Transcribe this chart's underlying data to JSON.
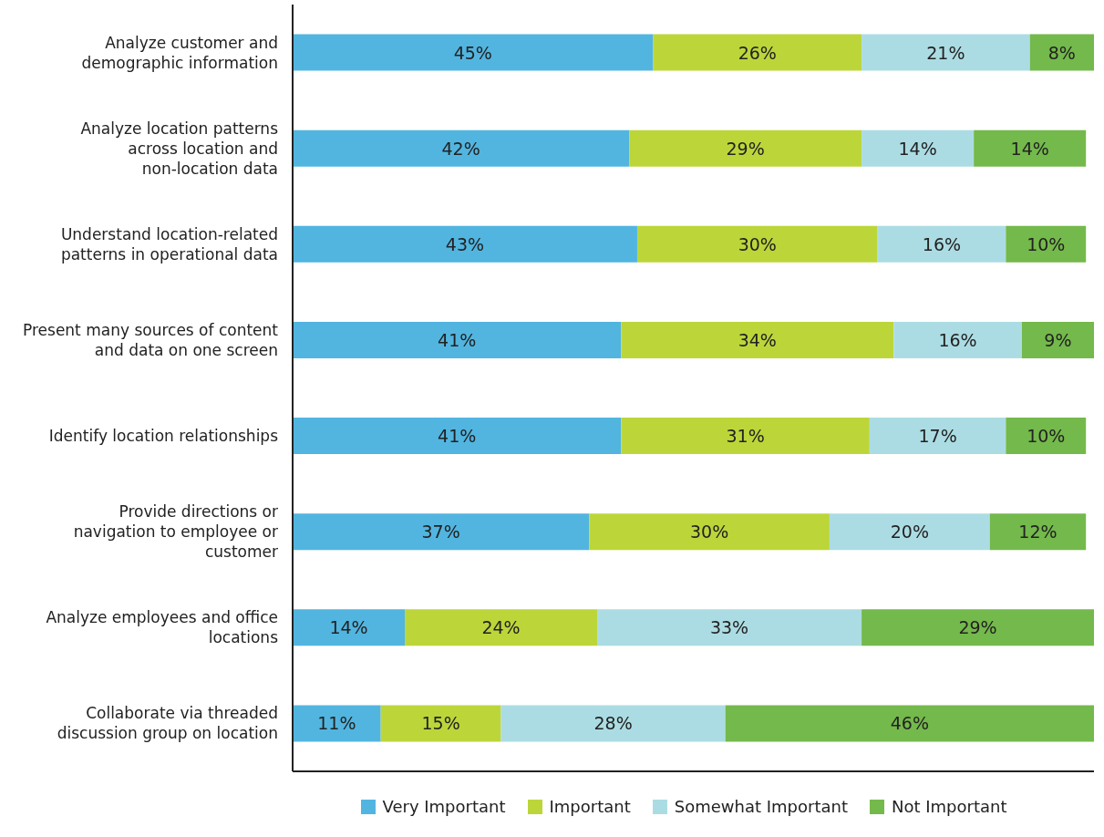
{
  "chart_data": {
    "type": "bar",
    "orientation": "horizontal",
    "stacked": true,
    "categories": [
      "Analyze customer and demographic information",
      "Analyze location patterns across location and non-location data",
      "Understand location-related patterns in operational data",
      "Present many sources of content and data on one screen",
      "Identify location relationships",
      "Provide directions or navigation to employee or customer",
      "Analyze employees and office locations",
      "Collaborate via threaded discussion group on location"
    ],
    "series": [
      {
        "name": "Very Important",
        "color": "#52b5e0",
        "values": [
          45,
          42,
          43,
          41,
          41,
          37,
          14,
          11
        ],
        "value_labels": [
          "45%",
          "42%",
          "43%",
          "41%",
          "41%",
          "37%",
          "14%",
          "11%"
        ]
      },
      {
        "name": "Important",
        "color": "#bcd63a",
        "values": [
          26,
          29,
          30,
          34,
          31,
          30,
          24,
          15
        ],
        "value_labels": [
          "26%",
          "29%",
          "30%",
          "34%",
          "31%",
          "30%",
          "24%",
          "15%"
        ]
      },
      {
        "name": "Somewhat Important",
        "color": "#acdce3",
        "values": [
          21,
          14,
          16,
          16,
          17,
          20,
          33,
          28
        ],
        "value_labels": [
          "21%",
          "14%",
          "16%",
          "16%",
          "17%",
          "20%",
          "33%",
          "28%"
        ]
      },
      {
        "name": "Not Important",
        "color": "#74b94b",
        "values": [
          8,
          14,
          10,
          9,
          10,
          12,
          29,
          46
        ],
        "value_labels": [
          "8%",
          "14%",
          "10%",
          "9%",
          "10%",
          "12%",
          "29%",
          "46%"
        ]
      }
    ],
    "xlim": [
      0,
      100
    ],
    "legend": "bottom",
    "tick_labels": "y"
  }
}
